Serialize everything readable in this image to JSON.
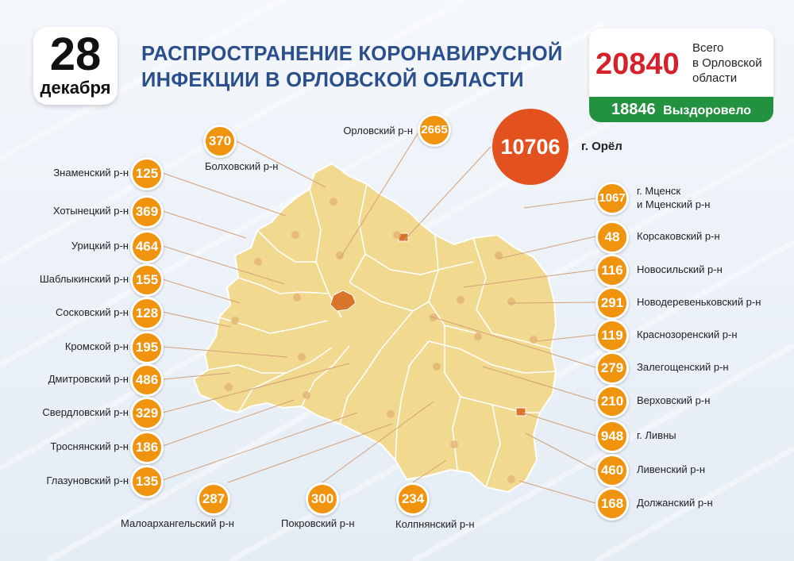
{
  "date": {
    "day": "28",
    "month": "декабря"
  },
  "title": {
    "line1": "РАСПРОСТРАНЕНИЕ КОРОНАВИРУСНОЙ",
    "line2": "ИНФЕКЦИИ В ОРЛОВСКОЙ ОБЛАСТИ"
  },
  "totals": {
    "cases": "20840",
    "cases_label_1": "Всего",
    "cases_label_2": "в Орловской",
    "cases_label_3": "области",
    "recovered": "18846",
    "recovered_label": "Выздоровело"
  },
  "city": {
    "name": "г. Орёл",
    "value": "10706"
  },
  "colors": {
    "map_fill": "#f1d98f",
    "map_border": "#ffffff",
    "circle": "#f0930e",
    "city_circle": "#e3521e",
    "title": "#2b4f8c",
    "cases": "#d6202a",
    "recovered_bg": "#229140"
  },
  "districts": [
    {
      "name": "Болховский р-н",
      "value": "370"
    },
    {
      "name": "Орловский р-н",
      "value": "2665"
    },
    {
      "name": "Знаменский р-н",
      "value": "125"
    },
    {
      "name": "Хотынецкий р-н",
      "value": "369"
    },
    {
      "name": "Урицкий р-н",
      "value": "464"
    },
    {
      "name": "Шаблыкинский р-н",
      "value": "155"
    },
    {
      "name": "Сосковский р-н",
      "value": "128"
    },
    {
      "name": "Кромской р-н",
      "value": "195"
    },
    {
      "name": "Дмитровский р-н",
      "value": "486"
    },
    {
      "name": "Свердловский р-н",
      "value": "329"
    },
    {
      "name": "Троснянский р-н",
      "value": "186"
    },
    {
      "name": "Глазуновский р-н",
      "value": "135"
    },
    {
      "name": "Малоархангельский р-н",
      "value": "287"
    },
    {
      "name": "Покровский р-н",
      "value": "300"
    },
    {
      "name": "Колпнянский р-н",
      "value": "234"
    },
    {
      "name_line1": "г. Мценск",
      "name_line2": "и Мценский р-н",
      "value": "1067"
    },
    {
      "name": "Корсаковский р-н",
      "value": "48"
    },
    {
      "name": "Новосильский р-н",
      "value": "116"
    },
    {
      "name": "Новодеревеньковский р-н",
      "value": "291"
    },
    {
      "name": "Краснозоренский р-н",
      "value": "119"
    },
    {
      "name": "Залегощенский р-н",
      "value": "279"
    },
    {
      "name": "Верховский р-н",
      "value": "210"
    },
    {
      "name": "г. Ливны",
      "value": "948"
    },
    {
      "name": "Ливенский р-н",
      "value": "460"
    },
    {
      "name": "Должанский р-н",
      "value": "168"
    }
  ]
}
